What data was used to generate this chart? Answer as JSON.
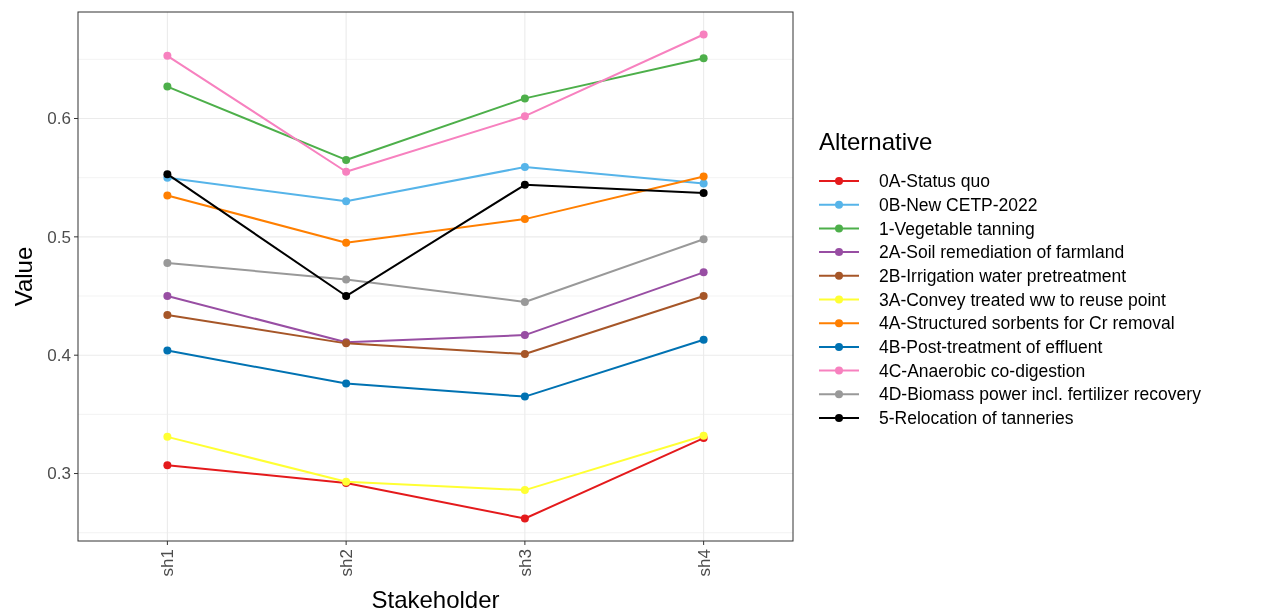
{
  "chart_data": {
    "type": "line",
    "xlabel": "Stakeholder",
    "ylabel": "Value",
    "legend_title": "Alternative",
    "legend": "right",
    "grid": true,
    "marker": "circle",
    "line_style": "solid",
    "categories": [
      "sh1",
      "sh2",
      "sh3",
      "sh4"
    ],
    "ylim": [
      0.243,
      0.69
    ],
    "yticks": [
      {
        "value": 0.25,
        "label": null
      },
      0.3,
      {
        "value": 0.35,
        "label": null
      },
      0.4,
      {
        "value": 0.45,
        "label": null
      },
      0.5,
      {
        "value": 0.55,
        "label": null
      },
      0.6,
      {
        "value": 0.65,
        "label": null
      }
    ],
    "series": [
      {
        "name": "0A-Status quo",
        "color": "#e41a1c",
        "values": [
          0.307,
          0.292,
          0.262,
          0.33
        ]
      },
      {
        "name": "0B-New CETP-2022",
        "color": "#56b4e9",
        "values": [
          0.55,
          0.53,
          0.559,
          0.545
        ]
      },
      {
        "name": "1-Vegetable tanning",
        "color": "#4daf4a",
        "values": [
          0.627,
          0.565,
          0.617,
          0.651
        ]
      },
      {
        "name": "2A-Soil remediation of farmland",
        "color": "#984ea3",
        "values": [
          0.45,
          0.411,
          0.417,
          0.47
        ]
      },
      {
        "name": "2B-Irrigation water pretreatment",
        "color": "#a65628",
        "values": [
          0.434,
          0.41,
          0.401,
          0.45
        ]
      },
      {
        "name": "3A-Convey treated ww to reuse point",
        "color": "#ffff33",
        "values": [
          0.331,
          0.293,
          0.286,
          0.332
        ]
      },
      {
        "name": "4A-Structured sorbents for Cr removal",
        "color": "#ff7f00",
        "values": [
          0.535,
          0.495,
          0.515,
          0.551
        ]
      },
      {
        "name": "4B-Post-treatment of effluent",
        "color": "#0072b2",
        "values": [
          0.404,
          0.376,
          0.365,
          0.413
        ]
      },
      {
        "name": "4C-Anaerobic co-digestion",
        "color": "#f781bf",
        "values": [
          0.653,
          0.555,
          0.602,
          0.671
        ]
      },
      {
        "name": "4D-Biomass power incl. fertilizer recovery",
        "color": "#999999",
        "values": [
          0.478,
          0.464,
          0.445,
          0.498
        ]
      },
      {
        "name": "5-Relocation of tanneries",
        "color": "#000000",
        "values": [
          0.553,
          0.45,
          0.544,
          0.537
        ]
      }
    ]
  }
}
